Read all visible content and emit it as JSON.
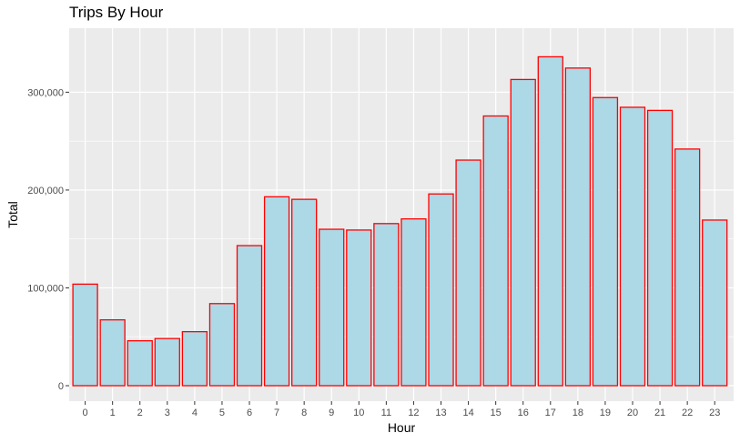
{
  "chart_data": {
    "type": "bar",
    "title": "Trips By Hour",
    "xlabel": "Hour",
    "ylabel": "Total",
    "categories": [
      "0",
      "1",
      "2",
      "3",
      "4",
      "5",
      "6",
      "7",
      "8",
      "9",
      "10",
      "11",
      "12",
      "13",
      "14",
      "15",
      "16",
      "17",
      "18",
      "19",
      "20",
      "21",
      "22",
      "23"
    ],
    "values": [
      103800,
      67300,
      45900,
      48200,
      55200,
      83900,
      143200,
      193100,
      190500,
      159900,
      159100,
      165700,
      170500,
      196000,
      230600,
      275700,
      313000,
      336200,
      324700,
      294500,
      284600,
      281400,
      241900,
      169300
    ],
    "ylim": [
      0,
      350000
    ],
    "yticks": [
      0,
      100000,
      200000,
      300000
    ],
    "ytick_labels": [
      "0",
      "100,000",
      "200,000",
      "300,000"
    ],
    "bar_fill": "#add8e6",
    "bar_stroke": "#ff0000",
    "panel_background": "#ebebeb",
    "grid_color": "#ffffff",
    "grid": true,
    "legend": "none"
  }
}
